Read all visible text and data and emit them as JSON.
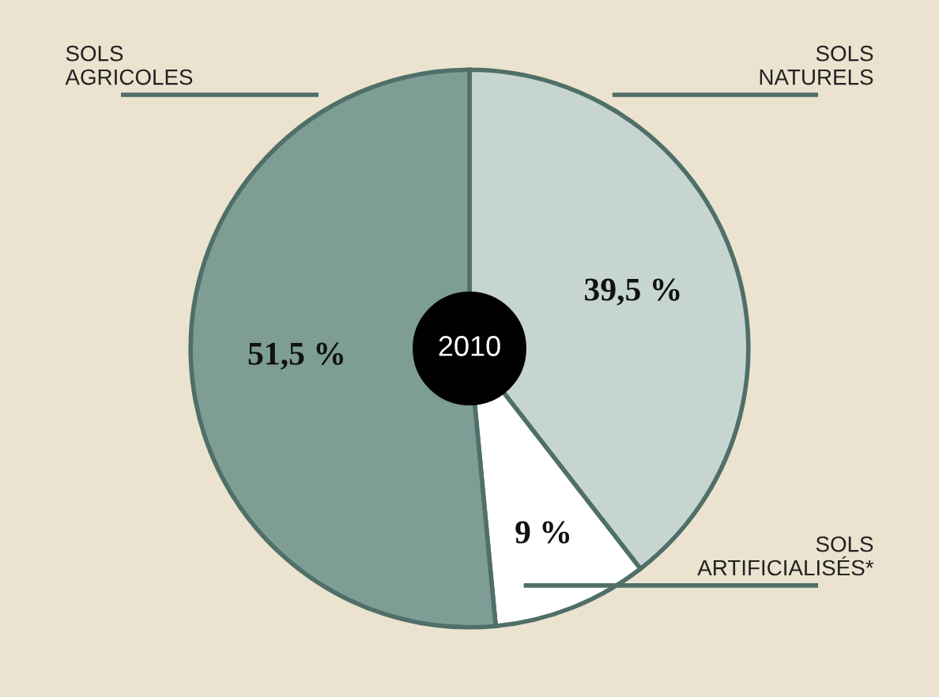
{
  "chart_data": {
    "type": "pie",
    "categories": [
      "SOLS\nNATURELS",
      "SOLS\nARTIFICIALISÉS*",
      "SOLS\nAGRICOLES"
    ],
    "values": [
      39.5,
      9,
      51.5
    ],
    "value_labels": [
      "39,5 %",
      "9 %",
      "51,5 %"
    ],
    "colors": [
      "#c7d5d1",
      "#ffffff",
      "#7e9d95"
    ],
    "annotations": [
      "2010"
    ]
  }
}
